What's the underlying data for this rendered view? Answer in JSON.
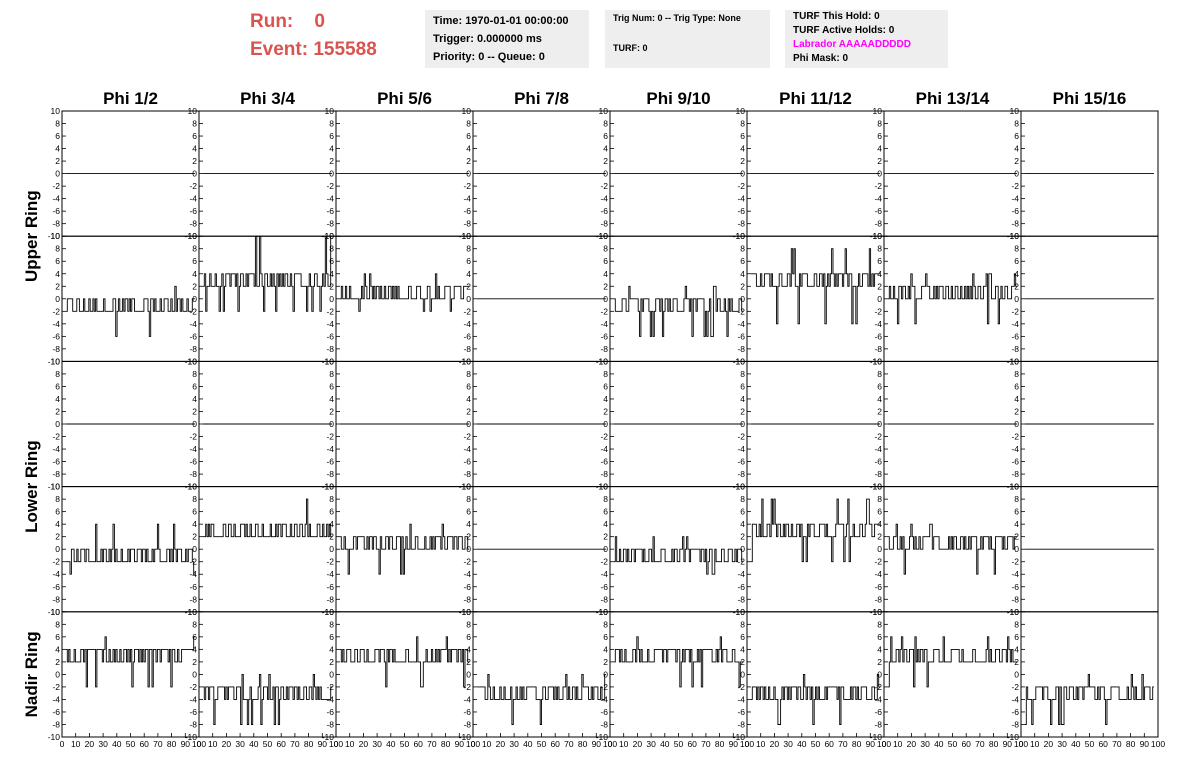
{
  "header": {
    "run_label": "Run:",
    "run_value": "0",
    "event_label": "Event:",
    "event_value": "155588"
  },
  "time_panel": {
    "time": "Time: 1970-01-01 00:00:00",
    "trigger": "Trigger: 0.000000 ms",
    "priority": "Priority: 0 -- Queue: 0"
  },
  "trig_panel": {
    "trig_line": "Trig Num: 0 -- Trig Type: None",
    "turf_line": "TURF: 0"
  },
  "turf_panel": {
    "this_hold": "TURF This Hold: 0",
    "active_holds": "TURF Active Holds: 0",
    "labrador": "Labrador AAAAADDDDD",
    "phi_mask": "Phi Mask: 0"
  },
  "colors": {
    "run_text": "#d9534f",
    "labrador_text": "#ff00ff",
    "panel_bg": "#eeeeee",
    "trace": "#000000"
  },
  "chart_data": {
    "type": "line",
    "column_titles": [
      "Phi 1/2",
      "Phi 3/4",
      "Phi 5/6",
      "Phi 7/8",
      "Phi 9/10",
      "Phi 11/12",
      "Phi 13/14",
      "Phi 15/16"
    ],
    "ring_titles": [
      "Upper Ring",
      "Lower Ring",
      "Nadir Ring"
    ],
    "rows_per_ring": [
      2,
      2,
      1
    ],
    "ylim": [
      -10,
      10
    ],
    "y_ticks": [
      -10,
      -8,
      -6,
      -4,
      -2,
      0,
      2,
      4,
      6,
      8,
      10
    ],
    "xlim": [
      0,
      100
    ],
    "x_tick_labels": [
      "0",
      "10",
      "20",
      "30",
      "40",
      "50",
      "60",
      "70",
      "80",
      "90",
      "100"
    ],
    "x_samples": 96,
    "grid": false,
    "panels": [
      {
        "row": 0,
        "values": [
          [
            0
          ],
          [
            0
          ],
          [
            0
          ],
          [
            0
          ],
          [
            0
          ],
          [
            0
          ],
          [
            0
          ],
          [
            0
          ]
        ]
      },
      {
        "row": 1,
        "levels": [
          [
            -2,
            0
          ],
          [
            2,
            4
          ],
          [
            0,
            2
          ],
          [
            0,
            0
          ],
          [
            -2,
            0
          ],
          [
            2,
            4
          ],
          [
            0,
            2
          ],
          [
            0,
            0
          ]
        ],
        "extremes": [
          [
            -6,
            2
          ],
          [
            -2,
            10
          ],
          [
            -2,
            4
          ],
          [
            0,
            0
          ],
          [
            -6,
            2
          ],
          [
            -4,
            8
          ],
          [
            -4,
            4
          ],
          [
            0,
            0
          ]
        ]
      },
      {
        "row": 2,
        "values": [
          [
            0
          ],
          [
            0
          ],
          [
            0
          ],
          [
            0
          ],
          [
            0
          ],
          [
            0
          ],
          [
            0
          ],
          [
            0
          ]
        ]
      },
      {
        "row": 3,
        "levels": [
          [
            -2,
            0
          ],
          [
            2,
            4
          ],
          [
            0,
            2
          ],
          [
            0,
            0
          ],
          [
            -2,
            0
          ],
          [
            2,
            4
          ],
          [
            0,
            2
          ],
          [
            0,
            0
          ]
        ],
        "extremes": [
          [
            -4,
            4
          ],
          [
            2,
            8
          ],
          [
            -4,
            4
          ],
          [
            0,
            0
          ],
          [
            -4,
            2
          ],
          [
            -2,
            8
          ],
          [
            -4,
            4
          ],
          [
            0,
            0
          ]
        ]
      },
      {
        "row": 4,
        "levels": [
          [
            2,
            4
          ],
          [
            -4,
            -2
          ],
          [
            2,
            4
          ],
          [
            -4,
            -2
          ],
          [
            2,
            4
          ],
          [
            -4,
            -2
          ],
          [
            2,
            4
          ],
          [
            -4,
            -2
          ]
        ],
        "extremes": [
          [
            -2,
            6
          ],
          [
            -8,
            0
          ],
          [
            -2,
            6
          ],
          [
            -8,
            0
          ],
          [
            -2,
            6
          ],
          [
            -8,
            0
          ],
          [
            -2,
            6
          ],
          [
            -8,
            0
          ]
        ]
      }
    ]
  }
}
